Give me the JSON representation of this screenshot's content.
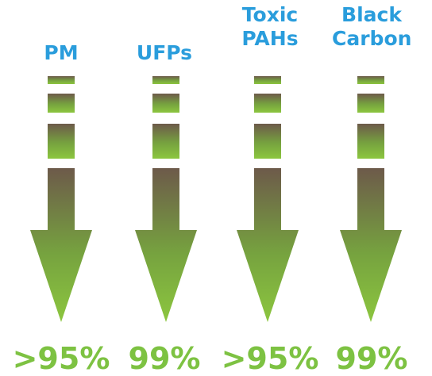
{
  "columns": [
    {
      "label_lines": [
        "PM"
      ],
      "value": ">95%"
    },
    {
      "label_lines": [
        "UFPs"
      ],
      "value": "99%"
    },
    {
      "label_lines": [
        "Toxic",
        "PAHs"
      ],
      "value": ">95%"
    },
    {
      "label_lines": [
        "Black",
        "Carbon"
      ],
      "value": "99%"
    }
  ],
  "colors": {
    "label": "#2a9ddc",
    "value": "#7dc242",
    "arrow_top": "#6d5a4a",
    "arrow_bottom": "#8cc63f"
  },
  "icons": [
    "reduction-arrow-icon"
  ]
}
